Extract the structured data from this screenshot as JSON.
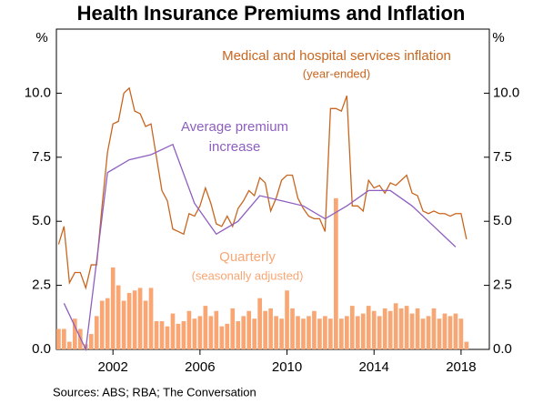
{
  "chart_data": {
    "type": "combo",
    "title": "Health Insurance Premiums and Inflation",
    "y_unit": "%",
    "source": "Sources:    ABS; RBA; The Conversation",
    "xlim": [
      1999.4,
      2019.3
    ],
    "xticks": [
      2002,
      2006,
      2010,
      2014,
      2018
    ],
    "ylim": [
      0,
      12.5
    ],
    "yticks": [
      {
        "value": 0,
        "label": "0.0"
      },
      {
        "value": 2.5,
        "label": "2.5"
      },
      {
        "value": 5,
        "label": "5.0"
      },
      {
        "value": 7.5,
        "label": "7.5"
      },
      {
        "value": 10,
        "label": "10.0"
      }
    ],
    "series": [
      {
        "name_lines": [
          "Quarterly",
          "(seasonally adjusted)"
        ],
        "type": "bar",
        "color": "#f8a673",
        "x": [
          1999.5,
          1999.75,
          2000,
          2000.25,
          2000.5,
          2000.75,
          2001,
          2001.25,
          2001.5,
          2001.75,
          2002,
          2002.25,
          2002.5,
          2002.75,
          2003,
          2003.25,
          2003.5,
          2003.75,
          2004,
          2004.25,
          2004.5,
          2004.75,
          2005,
          2005.25,
          2005.5,
          2005.75,
          2006,
          2006.25,
          2006.5,
          2006.75,
          2007,
          2007.25,
          2007.5,
          2007.75,
          2008,
          2008.25,
          2008.5,
          2008.75,
          2009,
          2009.25,
          2009.5,
          2009.75,
          2010,
          2010.25,
          2010.5,
          2010.75,
          2011,
          2011.25,
          2011.5,
          2011.75,
          2012,
          2012.25,
          2012.5,
          2012.75,
          2013,
          2013.25,
          2013.5,
          2013.75,
          2014,
          2014.25,
          2014.5,
          2014.75,
          2015,
          2015.25,
          2015.5,
          2015.75,
          2016,
          2016.25,
          2016.5,
          2016.75,
          2017,
          2017.25,
          2017.5,
          2017.75,
          2018,
          2018.25
        ],
        "values": [
          0.8,
          0.8,
          0.3,
          1.2,
          0.8,
          0.2,
          0.6,
          1.3,
          1.9,
          2.0,
          3.2,
          2.5,
          1.9,
          2.2,
          2.3,
          2.4,
          1.9,
          2.4,
          1.1,
          1.1,
          0.9,
          1.4,
          1.0,
          1.1,
          1.5,
          1.2,
          1.3,
          1.7,
          1.3,
          1.5,
          0.9,
          1.0,
          1.6,
          1.1,
          1.3,
          1.5,
          1.2,
          2.0,
          1.5,
          1.6,
          1.3,
          1.2,
          2.3,
          1.6,
          1.3,
          1.2,
          1.3,
          1.5,
          1.2,
          1.3,
          1.2,
          5.9,
          1.2,
          1.3,
          1.7,
          1.3,
          1.4,
          1.7,
          1.5,
          1.3,
          1.6,
          1.5,
          1.8,
          1.6,
          1.7,
          1.4,
          1.6,
          1.2,
          1.3,
          1.6,
          1.2,
          1.4,
          1.3,
          1.4,
          1.2,
          0.3
        ]
      },
      {
        "name_lines": [
          "Medical and hospital services inflation",
          "(year-ended)"
        ],
        "type": "line",
        "color": "#c8661f",
        "x": [
          1999.5,
          1999.75,
          2000,
          2000.25,
          2000.5,
          2000.75,
          2001,
          2001.25,
          2001.5,
          2001.75,
          2002,
          2002.25,
          2002.5,
          2002.75,
          2003,
          2003.25,
          2003.5,
          2003.75,
          2004,
          2004.25,
          2004.5,
          2004.75,
          2005,
          2005.25,
          2005.5,
          2005.75,
          2006,
          2006.25,
          2006.5,
          2006.75,
          2007,
          2007.25,
          2007.5,
          2007.75,
          2008,
          2008.25,
          2008.5,
          2008.75,
          2009,
          2009.25,
          2009.5,
          2009.75,
          2010,
          2010.25,
          2010.5,
          2010.75,
          2011,
          2011.25,
          2011.5,
          2011.75,
          2012,
          2012.25,
          2012.5,
          2012.75,
          2013,
          2013.25,
          2013.5,
          2013.75,
          2014,
          2014.25,
          2014.5,
          2014.75,
          2015,
          2015.25,
          2015.5,
          2015.75,
          2016,
          2016.25,
          2016.5,
          2016.75,
          2017,
          2017.25,
          2017.5,
          2017.75,
          2018,
          2018.25
        ],
        "values": [
          4.1,
          4.8,
          2.6,
          3.0,
          3.0,
          2.4,
          3.3,
          3.3,
          5.6,
          7.7,
          8.8,
          8.9,
          10.0,
          10.2,
          9.3,
          9.2,
          8.7,
          8.8,
          7.5,
          6.2,
          5.8,
          4.7,
          4.6,
          4.5,
          5.3,
          5.2,
          5.6,
          6.3,
          5.7,
          4.9,
          4.8,
          5.2,
          4.8,
          5.5,
          5.8,
          6.2,
          6.0,
          6.7,
          6.5,
          5.4,
          5.9,
          6.6,
          6.8,
          6.8,
          5.9,
          5.5,
          5.2,
          5.1,
          5.1,
          4.6,
          9.4,
          9.4,
          9.3,
          9.9,
          5.6,
          5.6,
          5.4,
          6.6,
          6.3,
          6.4,
          6.1,
          6.5,
          6.4,
          6.6,
          6.8,
          6.1,
          6.0,
          5.4,
          5.3,
          5.4,
          5.3,
          5.3,
          5.2,
          5.3,
          5.3,
          4.3
        ]
      },
      {
        "name_lines": [
          "Average premium",
          "increase"
        ],
        "type": "line",
        "color": "#8e5fbf",
        "x": [
          1999.75,
          2000.75,
          2001.75,
          2002.75,
          2003.75,
          2004.75,
          2005.75,
          2006.75,
          2007.75,
          2008.75,
          2009.75,
          2010.75,
          2011.75,
          2012.75,
          2013.75,
          2014.75,
          2015.75,
          2016.75,
          2017.75
        ],
        "values": [
          1.8,
          0.0,
          6.9,
          7.4,
          7.6,
          8.0,
          5.7,
          4.5,
          5.0,
          6.0,
          5.8,
          5.6,
          5.1,
          5.6,
          6.2,
          6.2,
          5.6,
          4.8,
          4.0
        ]
      }
    ]
  }
}
